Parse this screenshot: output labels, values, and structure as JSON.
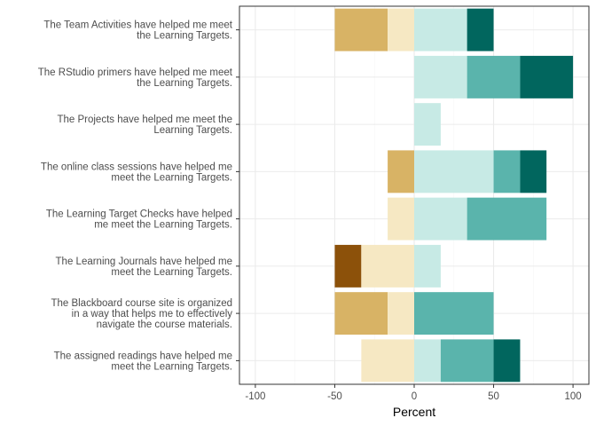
{
  "chart_data": {
    "type": "bar",
    "orientation": "horizontal",
    "stacked": "diverging",
    "xlabel": "Percent",
    "ylabel": "",
    "title": "",
    "xlim": [
      -110,
      110
    ],
    "xticks": [
      -100,
      -50,
      0,
      50,
      100
    ],
    "grid": true,
    "legend": "none",
    "categories": [
      "The Team Activities have helped me meet\nthe Learning Targets.",
      "The RStudio primers have helped me meet\nthe Learning Targets.",
      "The Projects have helped me meet the\nLearning Targets.",
      "The online class sessions have helped me\nmeet the Learning Targets.",
      "The Learning Target Checks have helped\nme meet the Learning Targets.",
      "The Learning Journals have helped me\nmeet the Learning Targets.",
      "The Blackboard course site is organized\nin a way that helps me to effectively\nnavigate the course materials.",
      "The assigned readings have helped me\nmeet the Learning Targets."
    ],
    "segment_colors": [
      "#8c510a",
      "#d8b365",
      "#f6e8c3",
      "#c7eae5",
      "#5ab4ac",
      "#01665e"
    ],
    "bars": [
      [
        [
          -50,
          -16.7,
          1
        ],
        [
          -16.7,
          0,
          2
        ],
        [
          0,
          33.3,
          3
        ],
        [
          33.3,
          50,
          5
        ]
      ],
      [
        [
          0,
          33.3,
          3
        ],
        [
          33.3,
          66.7,
          4
        ],
        [
          66.7,
          100,
          5
        ]
      ],
      [
        [
          0,
          16.7,
          3
        ]
      ],
      [
        [
          -16.7,
          0,
          1
        ],
        [
          0,
          50,
          3
        ],
        [
          50,
          66.7,
          4
        ],
        [
          66.7,
          83.3,
          5
        ]
      ],
      [
        [
          -16.7,
          0,
          2
        ],
        [
          0,
          33.3,
          3
        ],
        [
          33.3,
          83.3,
          4
        ]
      ],
      [
        [
          -50,
          -33.3,
          0
        ],
        [
          -33.3,
          0,
          2
        ],
        [
          0,
          16.7,
          3
        ]
      ],
      [
        [
          -50,
          -16.7,
          1
        ],
        [
          -16.7,
          0,
          2
        ],
        [
          0,
          50,
          4
        ]
      ],
      [
        [
          -33.3,
          0,
          2
        ],
        [
          0,
          16.7,
          3
        ],
        [
          16.7,
          50,
          4
        ],
        [
          50,
          66.7,
          5
        ]
      ]
    ],
    "colors": {
      "grid_major": "#ebebeb",
      "grid_minor": "#f5f5f5",
      "panel_border": "#333333"
    }
  }
}
